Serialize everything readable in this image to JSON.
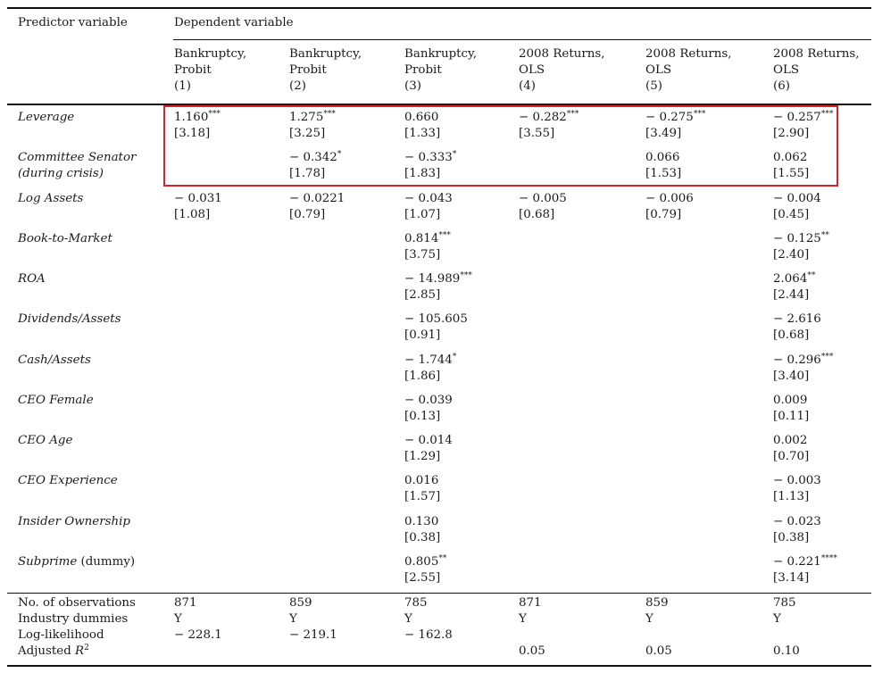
{
  "header": {
    "predictor_label": "Predictor variable",
    "dependent_label": "Dependent variable",
    "columns": [
      {
        "line1": "Bankruptcy,",
        "line2": "Probit",
        "num": "(1)"
      },
      {
        "line1": "Bankruptcy,",
        "line2": "Probit",
        "num": "(2)"
      },
      {
        "line1": "Bankruptcy,",
        "line2": "Probit",
        "num": "(3)"
      },
      {
        "line1": "2008 Returns,",
        "line2": "OLS",
        "num": "(4)"
      },
      {
        "line1": "2008 Returns,",
        "line2": "OLS",
        "num": "(5)"
      },
      {
        "line1": "2008 Returns,",
        "line2": "OLS",
        "num": "(6)"
      }
    ]
  },
  "rows": [
    {
      "label": "Leverage",
      "cells": [
        {
          "coef": "1.160",
          "stars": "***",
          "se": "[3.18]"
        },
        {
          "coef": "1.275",
          "stars": "***",
          "se": "[3.25]"
        },
        {
          "coef": "0.660",
          "stars": "",
          "se": "[1.33]"
        },
        {
          "coef": "− 0.282",
          "stars": "***",
          "se": "[3.55]"
        },
        {
          "coef": "− 0.275",
          "stars": "***",
          "se": "[3.49]"
        },
        {
          "coef": "− 0.257",
          "stars": "***",
          "se": "[2.90]"
        }
      ]
    },
    {
      "label": "Committee Senator",
      "label2": "(during crisis)",
      "cells": [
        null,
        {
          "coef": "− 0.342",
          "stars": "*",
          "se": "[1.78]"
        },
        {
          "coef": "− 0.333",
          "stars": "*",
          "se": "[1.83]"
        },
        null,
        {
          "coef": "0.066",
          "stars": "",
          "se": "[1.53]"
        },
        {
          "coef": "0.062",
          "stars": "",
          "se": "[1.55]"
        }
      ]
    },
    {
      "label": "Log Assets",
      "cells": [
        {
          "coef": "− 0.031",
          "stars": "",
          "se": "[1.08]"
        },
        {
          "coef": "− 0.0221",
          "stars": "",
          "se": "[0.79]"
        },
        {
          "coef": "− 0.043",
          "stars": "",
          "se": "[1.07]"
        },
        {
          "coef": "− 0.005",
          "stars": "",
          "se": "[0.68]"
        },
        {
          "coef": "− 0.006",
          "stars": "",
          "se": "[0.79]"
        },
        {
          "coef": "− 0.004",
          "stars": "",
          "se": "[0.45]"
        }
      ]
    },
    {
      "label": "Book-to-Market",
      "cells": [
        null,
        null,
        {
          "coef": "0.814",
          "stars": "***",
          "se": "[3.75]"
        },
        null,
        null,
        {
          "coef": "− 0.125",
          "stars": "**",
          "se": "[2.40]"
        }
      ]
    },
    {
      "label": "ROA",
      "cells": [
        null,
        null,
        {
          "coef": "− 14.989",
          "stars": "***",
          "se": "[2.85]"
        },
        null,
        null,
        {
          "coef": "2.064",
          "stars": "**",
          "se": "[2.44]"
        }
      ]
    },
    {
      "label": "Dividends/Assets",
      "cells": [
        null,
        null,
        {
          "coef": "− 105.605",
          "stars": "",
          "se": "[0.91]"
        },
        null,
        null,
        {
          "coef": "− 2.616",
          "stars": "",
          "se": "[0.68]"
        }
      ]
    },
    {
      "label": "Cash/Assets",
      "cells": [
        null,
        null,
        {
          "coef": "− 1.744",
          "stars": "*",
          "se": "[1.86]"
        },
        null,
        null,
        {
          "coef": "− 0.296",
          "stars": "***",
          "se": "[3.40]"
        }
      ]
    },
    {
      "label": "CEO Female",
      "cells": [
        null,
        null,
        {
          "coef": "− 0.039",
          "stars": "",
          "se": "[0.13]"
        },
        null,
        null,
        {
          "coef": "0.009",
          "stars": "",
          "se": "[0.11]"
        }
      ]
    },
    {
      "label": "CEO Age",
      "cells": [
        null,
        null,
        {
          "coef": "− 0.014",
          "stars": "",
          "se": "[1.29]"
        },
        null,
        null,
        {
          "coef": "0.002",
          "stars": "",
          "se": "[0.70]"
        }
      ]
    },
    {
      "label": "CEO Experience",
      "cells": [
        null,
        null,
        {
          "coef": "0.016",
          "stars": "",
          "se": "[1.57]"
        },
        null,
        null,
        {
          "coef": "− 0.003",
          "stars": "",
          "se": "[1.13]"
        }
      ]
    },
    {
      "label": "Insider Ownership",
      "cells": [
        null,
        null,
        {
          "coef": "0.130",
          "stars": "",
          "se": "[0.38]"
        },
        null,
        null,
        {
          "coef": "− 0.023",
          "stars": "",
          "se": "[0.38]"
        }
      ]
    },
    {
      "label": "Subprime",
      "label_suffix": " (dummy)",
      "cells": [
        null,
        null,
        {
          "coef": "0.805",
          "stars": "**",
          "se": "[2.55]"
        },
        null,
        null,
        {
          "coef": "− 0.221",
          "stars": "****",
          "se": "[3.14]"
        }
      ]
    }
  ],
  "footer": [
    {
      "label": "No. of observations",
      "values": [
        "871",
        "859",
        "785",
        "871",
        "859",
        "785"
      ]
    },
    {
      "label": "Industry dummies",
      "values": [
        "Y",
        "Y",
        "Y",
        "Y",
        "Y",
        "Y"
      ]
    },
    {
      "label": "Log-likelihood",
      "values": [
        "− 228.1",
        "− 219.1",
        "− 162.8",
        "",
        "",
        ""
      ]
    },
    {
      "label": "Adjusted R",
      "sup": "2",
      "values": [
        "",
        "",
        "",
        "0.05",
        "0.05",
        "0.10"
      ]
    }
  ],
  "colors": {
    "highlight": "#d7222a",
    "rule": "#111111"
  }
}
